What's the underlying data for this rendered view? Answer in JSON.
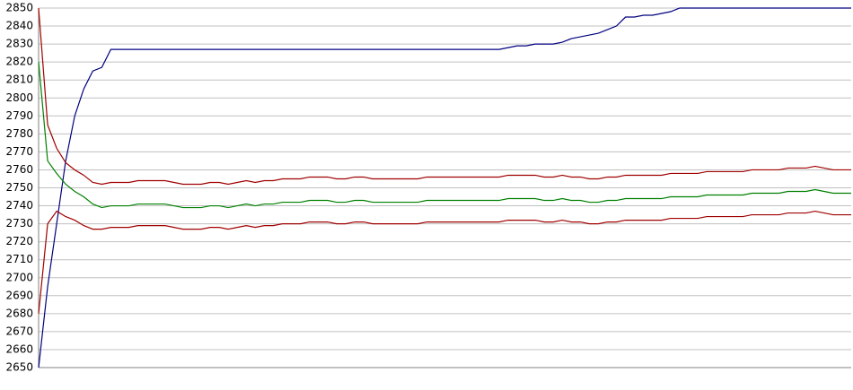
{
  "chart_data": {
    "type": "line",
    "categories": [
      null,
      null,
      null,
      null,
      null,
      null,
      null,
      null,
      null,
      null,
      null,
      null,
      null,
      null,
      null,
      null,
      null,
      null,
      null,
      null,
      null,
      null,
      null,
      null,
      null,
      null,
      null,
      null,
      null,
      null,
      null,
      null,
      null,
      null,
      null,
      null,
      null,
      null,
      null,
      null,
      null,
      null,
      null,
      null,
      null,
      null,
      null,
      null,
      null,
      null,
      null,
      null,
      null,
      null,
      null,
      null,
      null,
      null,
      null,
      null,
      null,
      null,
      null,
      null,
      null,
      null,
      null,
      null,
      null,
      null,
      null,
      null,
      null,
      null,
      null,
      null,
      null,
      null,
      null,
      null,
      null,
      null,
      null,
      null,
      null,
      null,
      null,
      null,
      null,
      null,
      null
    ],
    "series": [
      {
        "color": "#000080",
        "values": [
          2650,
          2695,
          2730,
          2765,
          2790,
          2805,
          2815,
          2817,
          2827,
          2827,
          2827,
          2827,
          2827,
          2827,
          2827,
          2827,
          2827,
          2827,
          2827,
          2827,
          2827,
          2827,
          2827,
          2827,
          2827,
          2827,
          2827,
          2827,
          2827,
          2827,
          2827,
          2827,
          2827,
          2827,
          2827,
          2827,
          2827,
          2827,
          2827,
          2827,
          2827,
          2827,
          2827,
          2827,
          2827,
          2827,
          2827,
          2827,
          2827,
          2827,
          2827,
          2827,
          2828,
          2829,
          2829,
          2830,
          2830,
          2830,
          2831,
          2833,
          2834,
          2835,
          2836,
          2838,
          2840,
          2845,
          2845,
          2846,
          2846,
          2847,
          2848,
          2850,
          2850,
          2850,
          2850,
          2850,
          2850,
          2850,
          2850,
          2850,
          2850,
          2850,
          2850,
          2850,
          2850,
          2850,
          2850,
          2850,
          2850,
          2850,
          2850
        ]
      },
      {
        "color": "#a00000",
        "values": [
          2850,
          2785,
          2772,
          2764,
          2760,
          2757,
          2753,
          2752,
          2753,
          2753,
          2753,
          2754,
          2754,
          2754,
          2754,
          2753,
          2752,
          2752,
          2752,
          2753,
          2753,
          2752,
          2753,
          2754,
          2753,
          2754,
          2754,
          2755,
          2755,
          2755,
          2756,
          2756,
          2756,
          2755,
          2755,
          2756,
          2756,
          2755,
          2755,
          2755,
          2755,
          2755,
          2755,
          2756,
          2756,
          2756,
          2756,
          2756,
          2756,
          2756,
          2756,
          2756,
          2757,
          2757,
          2757,
          2757,
          2756,
          2756,
          2757,
          2756,
          2756,
          2755,
          2755,
          2756,
          2756,
          2757,
          2757,
          2757,
          2757,
          2757,
          2758,
          2758,
          2758,
          2758,
          2759,
          2759,
          2759,
          2759,
          2759,
          2760,
          2760,
          2760,
          2760,
          2761,
          2761,
          2761,
          2762,
          2761,
          2760,
          2760,
          2760
        ]
      },
      {
        "color": "#008000",
        "values": [
          2820,
          2765,
          2758,
          2752,
          2748,
          2745,
          2741,
          2739,
          2740,
          2740,
          2740,
          2741,
          2741,
          2741,
          2741,
          2740,
          2739,
          2739,
          2739,
          2740,
          2740,
          2739,
          2740,
          2741,
          2740,
          2741,
          2741,
          2742,
          2742,
          2742,
          2743,
          2743,
          2743,
          2742,
          2742,
          2743,
          2743,
          2742,
          2742,
          2742,
          2742,
          2742,
          2742,
          2743,
          2743,
          2743,
          2743,
          2743,
          2743,
          2743,
          2743,
          2743,
          2744,
          2744,
          2744,
          2744,
          2743,
          2743,
          2744,
          2743,
          2743,
          2742,
          2742,
          2743,
          2743,
          2744,
          2744,
          2744,
          2744,
          2744,
          2745,
          2745,
          2745,
          2745,
          2746,
          2746,
          2746,
          2746,
          2746,
          2747,
          2747,
          2747,
          2747,
          2748,
          2748,
          2748,
          2749,
          2748,
          2747,
          2747,
          2747
        ]
      },
      {
        "color": "#a00000",
        "values": [
          2680,
          2730,
          2737,
          2734,
          2732,
          2729,
          2727,
          2727,
          2728,
          2728,
          2728,
          2729,
          2729,
          2729,
          2729,
          2728,
          2727,
          2727,
          2727,
          2728,
          2728,
          2727,
          2728,
          2729,
          2728,
          2729,
          2729,
          2730,
          2730,
          2730,
          2731,
          2731,
          2731,
          2730,
          2730,
          2731,
          2731,
          2730,
          2730,
          2730,
          2730,
          2730,
          2730,
          2731,
          2731,
          2731,
          2731,
          2731,
          2731,
          2731,
          2731,
          2731,
          2732,
          2732,
          2732,
          2732,
          2731,
          2731,
          2732,
          2731,
          2731,
          2730,
          2730,
          2731,
          2731,
          2732,
          2732,
          2732,
          2732,
          2732,
          2733,
          2733,
          2733,
          2733,
          2734,
          2734,
          2734,
          2734,
          2734,
          2735,
          2735,
          2735,
          2735,
          2736,
          2736,
          2736,
          2737,
          2736,
          2735,
          2735,
          2735
        ]
      }
    ],
    "ylim": [
      2650,
      2850
    ],
    "yticks": [
      2650,
      2660,
      2670,
      2680,
      2690,
      2700,
      2710,
      2720,
      2730,
      2740,
      2750,
      2760,
      2770,
      2780,
      2790,
      2800,
      2810,
      2820,
      2830,
      2840,
      2850
    ],
    "grid": true
  }
}
